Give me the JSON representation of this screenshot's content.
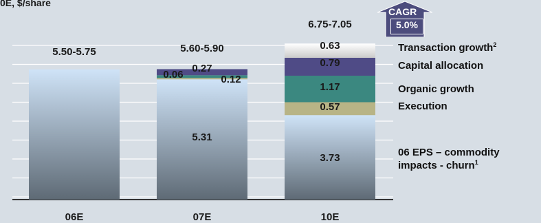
{
  "unit_label": "0E, $/share",
  "cagr": {
    "title": "CAGR",
    "value": "5.0%",
    "color": "#4c4c7d"
  },
  "colors": {
    "base_top": "#cfe3f7",
    "base_bottom": "#5e6a75",
    "execution": "#b8b486",
    "organic": "#3b8880",
    "capital": "#4f4b86",
    "transaction": "#cacaca",
    "background": "#d7dee5"
  },
  "legend": [
    {
      "key": "transaction",
      "label": "Transaction growth",
      "sup": "2"
    },
    {
      "key": "capital",
      "label": "Capital allocation",
      "sup": ""
    },
    {
      "key": "organic",
      "label": "Organic growth",
      "sup": ""
    },
    {
      "key": "execution",
      "label": "Execution",
      "sup": ""
    },
    {
      "key": "base",
      "label": "06 EPS – commodity",
      "label2": "impacts - churn",
      "sup": "1"
    }
  ],
  "chart_data": {
    "type": "bar",
    "stacked": true,
    "categories": [
      "06E",
      "07E",
      "10E"
    ],
    "range_labels": [
      "5.50-5.75",
      "5.60-5.90",
      "6.75-7.05"
    ],
    "ylim": [
      0,
      7.05
    ],
    "grid": true,
    "series": [
      {
        "name": "06 EPS – commodity impacts - churn",
        "key": "base",
        "values": [
          5.75,
          5.31,
          3.73
        ],
        "labels": [
          "",
          "5.31",
          "3.73"
        ]
      },
      {
        "name": "Execution",
        "key": "execution",
        "values": [
          0,
          0.06,
          0.57
        ],
        "labels": [
          "",
          "0.06",
          "0.57"
        ]
      },
      {
        "name": "Organic growth",
        "key": "organic",
        "values": [
          0,
          0.12,
          1.17
        ],
        "labels": [
          "",
          "0.12",
          "1.17"
        ]
      },
      {
        "name": "Capital allocation",
        "key": "capital",
        "values": [
          0,
          0.27,
          0.79
        ],
        "labels": [
          "",
          "0.27",
          "0.79"
        ]
      },
      {
        "name": "Transaction growth",
        "key": "transaction",
        "values": [
          0,
          0,
          0.63
        ],
        "labels": [
          "",
          "",
          "0.63"
        ]
      }
    ]
  }
}
